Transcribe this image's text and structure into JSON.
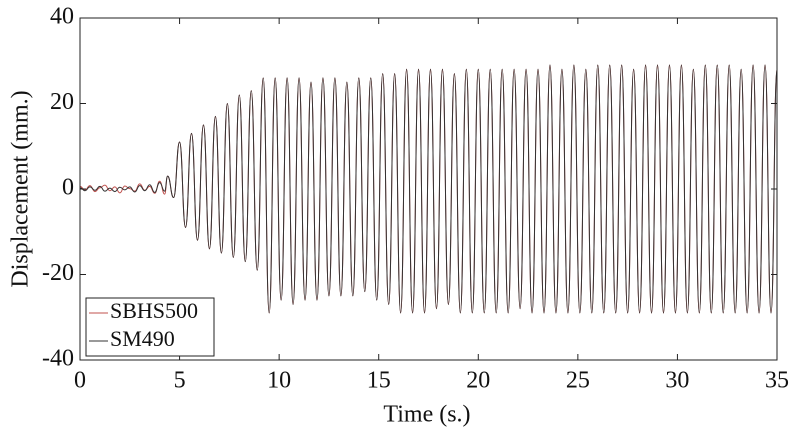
{
  "chart_data": {
    "type": "line",
    "xlabel": "Time (s.)",
    "ylabel": "Displacement (mm.)",
    "xlim": [
      0,
      35
    ],
    "ylim": [
      -40,
      40
    ],
    "xticks": [
      0,
      5,
      10,
      15,
      20,
      25,
      30,
      35
    ],
    "yticks": [
      -40,
      -20,
      0,
      20,
      40
    ],
    "legend": "lower left",
    "x": [
      0,
      0.25,
      0.5,
      0.75,
      1,
      1.25,
      1.5,
      1.75,
      2,
      2.25,
      2.5,
      2.75,
      3,
      3.25,
      3.5,
      3.75,
      4,
      4.25,
      4.4,
      4.7,
      5.0,
      5.3,
      5.6,
      5.9,
      6.2,
      6.5,
      6.8,
      7.1,
      7.4,
      7.7,
      8.0,
      8.3,
      8.6,
      8.9,
      9.2,
      9.5,
      9.8,
      10.1,
      10.4,
      10.7,
      11.0,
      11.3,
      11.6,
      11.9,
      12.2,
      12.5,
      12.8,
      13.1,
      13.4,
      13.7,
      14.0,
      14.3,
      14.6,
      14.9,
      15.2,
      15.5,
      15.8,
      16.1,
      16.4,
      16.7,
      17.0,
      17.3,
      17.6,
      17.9,
      18.2,
      18.5,
      18.8,
      19.1,
      19.4,
      19.7,
      20.0,
      20.3,
      20.6,
      20.9,
      21.2,
      21.5,
      21.8,
      22.1,
      22.4,
      22.7,
      23.0,
      23.3,
      23.6,
      23.9,
      24.2,
      24.5,
      24.8,
      25.1,
      25.4,
      25.7,
      26.0,
      26.3,
      26.6,
      26.9,
      27.2,
      27.5,
      27.8,
      28.1,
      28.4,
      28.7,
      29.0,
      29.3,
      29.6,
      29.9,
      30.2,
      30.5,
      30.8,
      31.1,
      31.4,
      31.7,
      32.0,
      32.3,
      32.6,
      32.9,
      33.2,
      33.5,
      33.8,
      34.1,
      34.4,
      34.7,
      35.0
    ],
    "series": [
      {
        "name": "SBHS500",
        "color": "#c0504d",
        "values": [
          0.6,
          -0.2,
          0.8,
          -0.6,
          0.3,
          0.9,
          -0.4,
          0.5,
          -0.9,
          0.7,
          0.1,
          -0.5,
          1.2,
          -0.3,
          0.6,
          -1,
          1.8,
          -1.2,
          3,
          -2,
          11,
          -9,
          13,
          -12,
          15,
          -14,
          17,
          -15,
          20,
          -16,
          22,
          -17,
          23,
          -19,
          26,
          -29,
          26,
          -26,
          26,
          -27,
          26,
          -26,
          25,
          -26,
          26,
          -25,
          26,
          -25,
          25,
          -25,
          26,
          -24,
          26,
          -26,
          27,
          -27,
          27,
          -29,
          28,
          -29,
          28,
          -29,
          28,
          -28,
          28,
          -27,
          27,
          -29,
          28,
          -29,
          28,
          -29,
          28,
          -29,
          28,
          -29,
          28,
          -28,
          28,
          -29,
          28,
          -29,
          29,
          -29,
          28,
          -29,
          29,
          -29,
          28,
          -29,
          29,
          -29,
          29,
          -29,
          29,
          -29,
          28,
          -29,
          29,
          -29,
          29,
          -29,
          29,
          -29,
          29,
          -29,
          28,
          -29,
          29,
          -29,
          29,
          -29,
          29,
          -29,
          28,
          -29,
          29,
          -29,
          29,
          -29,
          28
        ]
      },
      {
        "name": "SM490",
        "color": "#333333",
        "values": [
          0.3,
          -0.4,
          0.5,
          -0.3,
          0.6,
          -0.5,
          0.2,
          -0.6,
          0.4,
          -0.2,
          0.5,
          -0.7,
          0.8,
          -0.4,
          1,
          -0.8,
          1.5,
          -0.5,
          3,
          -2,
          11,
          -9,
          13,
          -12,
          15,
          -14,
          17,
          -15,
          20,
          -16,
          22,
          -17,
          23,
          -19,
          26,
          -29,
          26,
          -26,
          26,
          -27,
          26,
          -26,
          25,
          -26,
          26,
          -25,
          26,
          -25,
          25,
          -25,
          26,
          -24,
          26,
          -26,
          27,
          -27,
          27,
          -29,
          28,
          -29,
          28,
          -29,
          28,
          -28,
          28,
          -27,
          27,
          -29,
          28,
          -29,
          28,
          -29,
          28,
          -29,
          28,
          -29,
          28,
          -28,
          28,
          -29,
          28,
          -29,
          29,
          -29,
          28,
          -29,
          29,
          -29,
          28,
          -29,
          29,
          -29,
          29,
          -29,
          29,
          -29,
          28,
          -29,
          29,
          -29,
          29,
          -29,
          29,
          -29,
          29,
          -29,
          28,
          -29,
          29,
          -29,
          29,
          -29,
          29,
          -29,
          28,
          -29,
          29,
          -29,
          29,
          -29,
          28
        ]
      }
    ]
  }
}
